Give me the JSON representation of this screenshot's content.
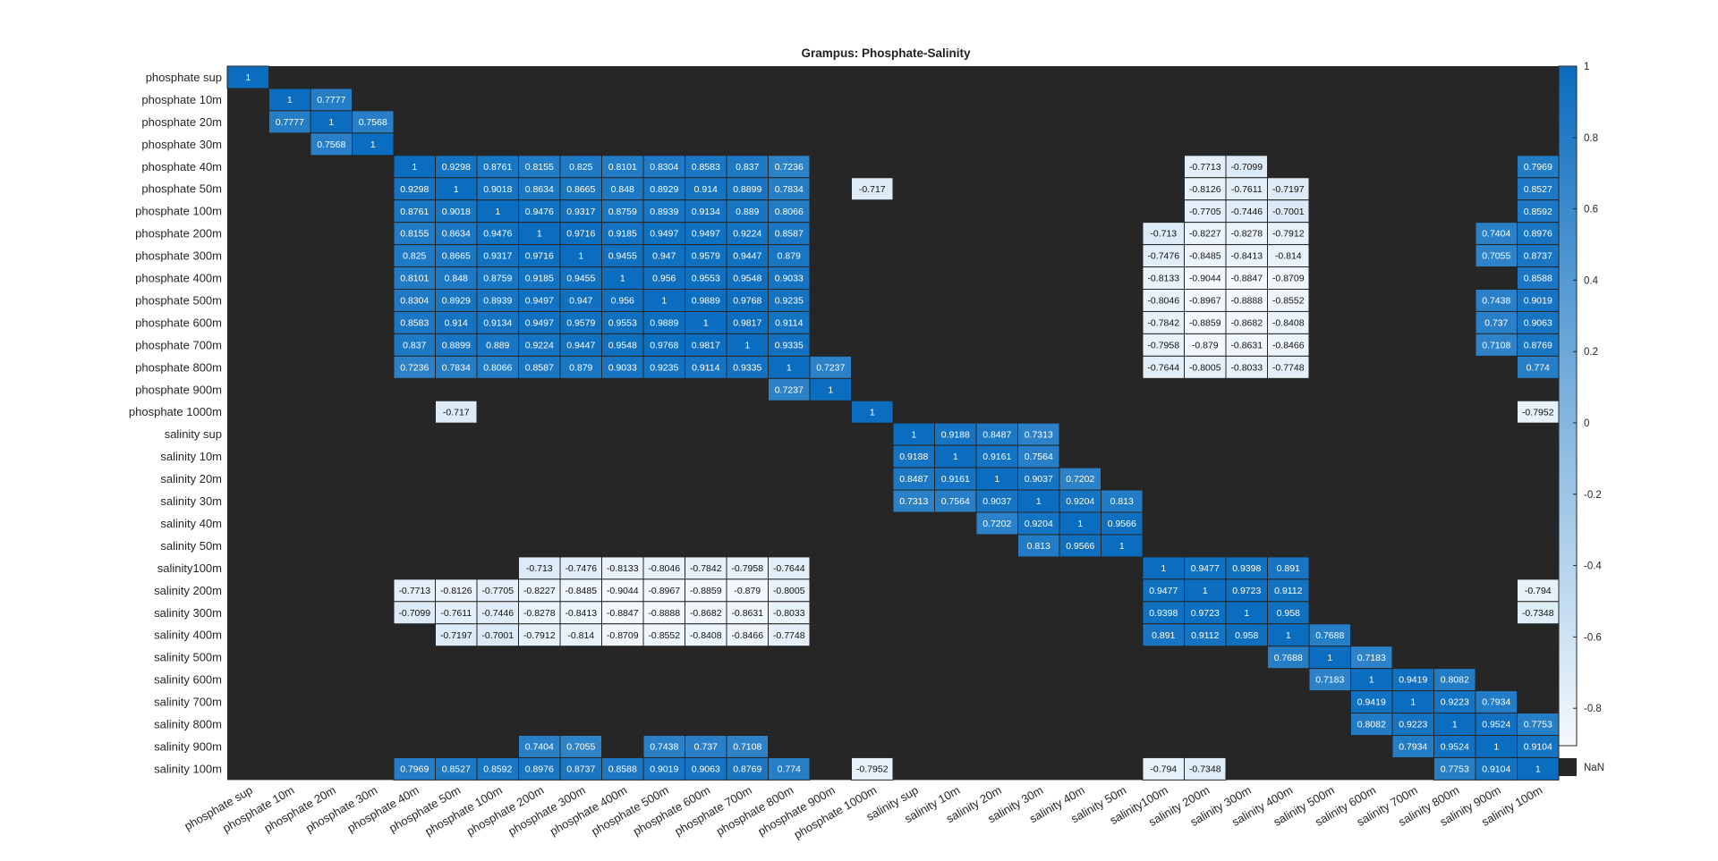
{
  "chart_data": {
    "type": "heatmap",
    "title": "Grampus: Phosphate-Salinity",
    "labels": [
      "phosphate sup",
      "phosphate 10m",
      "phosphate 20m",
      "phosphate 30m",
      "phosphate 40m",
      "phosphate 50m",
      "phosphate 100m",
      "phosphate 200m",
      "phosphate 300m",
      "phosphate 400m",
      "phosphate 500m",
      "phosphate 600m",
      "phosphate 700m",
      "phosphate 800m",
      "phosphate 900m",
      "phosphate 1000m",
      "salinity sup",
      "salinity 10m",
      "salinity 20m",
      "salinity 30m",
      "salinity 40m",
      "salinity 50m",
      "salinity100m",
      "salinity 200m",
      "salinity 300m",
      "salinity 400m",
      "salinity 500m",
      "salinity 600m",
      "salinity 700m",
      "salinity 800m",
      "salinity 900m",
      "salinity 100m"
    ],
    "cells": [
      [
        0,
        0,
        "1"
      ],
      [
        1,
        1,
        "1"
      ],
      [
        1,
        2,
        "0.7777"
      ],
      [
        2,
        1,
        "0.7777"
      ],
      [
        2,
        2,
        "1"
      ],
      [
        2,
        3,
        "0.7568"
      ],
      [
        3,
        2,
        "0.7568"
      ],
      [
        3,
        3,
        "1"
      ],
      [
        4,
        4,
        "1"
      ],
      [
        4,
        5,
        "0.9298"
      ],
      [
        4,
        6,
        "0.8761"
      ],
      [
        4,
        7,
        "0.8155"
      ],
      [
        4,
        8,
        "0.825"
      ],
      [
        4,
        9,
        "0.8101"
      ],
      [
        4,
        10,
        "0.8304"
      ],
      [
        4,
        11,
        "0.8583"
      ],
      [
        4,
        12,
        "0.837"
      ],
      [
        4,
        13,
        "0.7236"
      ],
      [
        4,
        23,
        "-0.7713"
      ],
      [
        4,
        24,
        "-0.7099"
      ],
      [
        4,
        31,
        "0.7969"
      ],
      [
        5,
        4,
        "0.9298"
      ],
      [
        5,
        5,
        "1"
      ],
      [
        5,
        6,
        "0.9018"
      ],
      [
        5,
        7,
        "0.8634"
      ],
      [
        5,
        8,
        "0.8665"
      ],
      [
        5,
        9,
        "0.848"
      ],
      [
        5,
        10,
        "0.8929"
      ],
      [
        5,
        11,
        "0.914"
      ],
      [
        5,
        12,
        "0.8899"
      ],
      [
        5,
        13,
        "0.7834"
      ],
      [
        5,
        15,
        "-0.717"
      ],
      [
        5,
        23,
        "-0.8126"
      ],
      [
        5,
        24,
        "-0.7611"
      ],
      [
        5,
        25,
        "-0.7197"
      ],
      [
        5,
        31,
        "0.8527"
      ],
      [
        6,
        4,
        "0.8761"
      ],
      [
        6,
        5,
        "0.9018"
      ],
      [
        6,
        6,
        "1"
      ],
      [
        6,
        7,
        "0.9476"
      ],
      [
        6,
        8,
        "0.9317"
      ],
      [
        6,
        9,
        "0.8759"
      ],
      [
        6,
        10,
        "0.8939"
      ],
      [
        6,
        11,
        "0.9134"
      ],
      [
        6,
        12,
        "0.889"
      ],
      [
        6,
        13,
        "0.8066"
      ],
      [
        6,
        23,
        "-0.7705"
      ],
      [
        6,
        24,
        "-0.7446"
      ],
      [
        6,
        25,
        "-0.7001"
      ],
      [
        6,
        31,
        "0.8592"
      ],
      [
        7,
        4,
        "0.8155"
      ],
      [
        7,
        5,
        "0.8634"
      ],
      [
        7,
        6,
        "0.9476"
      ],
      [
        7,
        7,
        "1"
      ],
      [
        7,
        8,
        "0.9716"
      ],
      [
        7,
        9,
        "0.9185"
      ],
      [
        7,
        10,
        "0.9497"
      ],
      [
        7,
        11,
        "0.9497"
      ],
      [
        7,
        12,
        "0.9224"
      ],
      [
        7,
        13,
        "0.8587"
      ],
      [
        7,
        22,
        "-0.713"
      ],
      [
        7,
        23,
        "-0.8227"
      ],
      [
        7,
        24,
        "-0.8278"
      ],
      [
        7,
        25,
        "-0.7912"
      ],
      [
        7,
        30,
        "0.7404"
      ],
      [
        7,
        31,
        "0.8976"
      ],
      [
        8,
        4,
        "0.825"
      ],
      [
        8,
        5,
        "0.8665"
      ],
      [
        8,
        6,
        "0.9317"
      ],
      [
        8,
        7,
        "0.9716"
      ],
      [
        8,
        8,
        "1"
      ],
      [
        8,
        9,
        "0.9455"
      ],
      [
        8,
        10,
        "0.947"
      ],
      [
        8,
        11,
        "0.9579"
      ],
      [
        8,
        12,
        "0.9447"
      ],
      [
        8,
        13,
        "0.879"
      ],
      [
        8,
        22,
        "-0.7476"
      ],
      [
        8,
        23,
        "-0.8485"
      ],
      [
        8,
        24,
        "-0.8413"
      ],
      [
        8,
        25,
        "-0.814"
      ],
      [
        8,
        30,
        "0.7055"
      ],
      [
        8,
        31,
        "0.8737"
      ],
      [
        9,
        4,
        "0.8101"
      ],
      [
        9,
        5,
        "0.848"
      ],
      [
        9,
        6,
        "0.8759"
      ],
      [
        9,
        7,
        "0.9185"
      ],
      [
        9,
        8,
        "0.9455"
      ],
      [
        9,
        9,
        "1"
      ],
      [
        9,
        10,
        "0.956"
      ],
      [
        9,
        11,
        "0.9553"
      ],
      [
        9,
        12,
        "0.9548"
      ],
      [
        9,
        13,
        "0.9033"
      ],
      [
        9,
        22,
        "-0.8133"
      ],
      [
        9,
        23,
        "-0.9044"
      ],
      [
        9,
        24,
        "-0.8847"
      ],
      [
        9,
        25,
        "-0.8709"
      ],
      [
        9,
        31,
        "0.8588"
      ],
      [
        10,
        4,
        "0.8304"
      ],
      [
        10,
        5,
        "0.8929"
      ],
      [
        10,
        6,
        "0.8939"
      ],
      [
        10,
        7,
        "0.9497"
      ],
      [
        10,
        8,
        "0.947"
      ],
      [
        10,
        9,
        "0.956"
      ],
      [
        10,
        10,
        "1"
      ],
      [
        10,
        11,
        "0.9889"
      ],
      [
        10,
        12,
        "0.9768"
      ],
      [
        10,
        13,
        "0.9235"
      ],
      [
        10,
        22,
        "-0.8046"
      ],
      [
        10,
        23,
        "-0.8967"
      ],
      [
        10,
        24,
        "-0.8888"
      ],
      [
        10,
        25,
        "-0.8552"
      ],
      [
        10,
        30,
        "0.7438"
      ],
      [
        10,
        31,
        "0.9019"
      ],
      [
        11,
        4,
        "0.8583"
      ],
      [
        11,
        5,
        "0.914"
      ],
      [
        11,
        6,
        "0.9134"
      ],
      [
        11,
        7,
        "0.9497"
      ],
      [
        11,
        8,
        "0.9579"
      ],
      [
        11,
        9,
        "0.9553"
      ],
      [
        11,
        10,
        "0.9889"
      ],
      [
        11,
        11,
        "1"
      ],
      [
        11,
        12,
        "0.9817"
      ],
      [
        11,
        13,
        "0.9114"
      ],
      [
        11,
        22,
        "-0.7842"
      ],
      [
        11,
        23,
        "-0.8859"
      ],
      [
        11,
        24,
        "-0.8682"
      ],
      [
        11,
        25,
        "-0.8408"
      ],
      [
        11,
        30,
        "0.737"
      ],
      [
        11,
        31,
        "0.9063"
      ],
      [
        12,
        4,
        "0.837"
      ],
      [
        12,
        5,
        "0.8899"
      ],
      [
        12,
        6,
        "0.889"
      ],
      [
        12,
        7,
        "0.9224"
      ],
      [
        12,
        8,
        "0.9447"
      ],
      [
        12,
        9,
        "0.9548"
      ],
      [
        12,
        10,
        "0.9768"
      ],
      [
        12,
        11,
        "0.9817"
      ],
      [
        12,
        12,
        "1"
      ],
      [
        12,
        13,
        "0.9335"
      ],
      [
        12,
        22,
        "-0.7958"
      ],
      [
        12,
        23,
        "-0.879"
      ],
      [
        12,
        24,
        "-0.8631"
      ],
      [
        12,
        25,
        "-0.8466"
      ],
      [
        12,
        30,
        "0.7108"
      ],
      [
        12,
        31,
        "0.8769"
      ],
      [
        13,
        4,
        "0.7236"
      ],
      [
        13,
        5,
        "0.7834"
      ],
      [
        13,
        6,
        "0.8066"
      ],
      [
        13,
        7,
        "0.8587"
      ],
      [
        13,
        8,
        "0.879"
      ],
      [
        13,
        9,
        "0.9033"
      ],
      [
        13,
        10,
        "0.9235"
      ],
      [
        13,
        11,
        "0.9114"
      ],
      [
        13,
        12,
        "0.9335"
      ],
      [
        13,
        13,
        "1"
      ],
      [
        13,
        14,
        "0.7237"
      ],
      [
        13,
        22,
        "-0.7644"
      ],
      [
        13,
        23,
        "-0.8005"
      ],
      [
        13,
        24,
        "-0.8033"
      ],
      [
        13,
        25,
        "-0.7748"
      ],
      [
        13,
        31,
        "0.774"
      ],
      [
        14,
        13,
        "0.7237"
      ],
      [
        14,
        14,
        "1"
      ],
      [
        15,
        5,
        "-0.717"
      ],
      [
        15,
        15,
        "1"
      ],
      [
        15,
        31,
        "-0.7952"
      ],
      [
        16,
        16,
        "1"
      ],
      [
        16,
        17,
        "0.9188"
      ],
      [
        16,
        18,
        "0.8487"
      ],
      [
        16,
        19,
        "0.7313"
      ],
      [
        17,
        16,
        "0.9188"
      ],
      [
        17,
        17,
        "1"
      ],
      [
        17,
        18,
        "0.9161"
      ],
      [
        17,
        19,
        "0.7564"
      ],
      [
        18,
        16,
        "0.8487"
      ],
      [
        18,
        17,
        "0.9161"
      ],
      [
        18,
        18,
        "1"
      ],
      [
        18,
        19,
        "0.9037"
      ],
      [
        18,
        20,
        "0.7202"
      ],
      [
        19,
        16,
        "0.7313"
      ],
      [
        19,
        17,
        "0.7564"
      ],
      [
        19,
        18,
        "0.9037"
      ],
      [
        19,
        19,
        "1"
      ],
      [
        19,
        20,
        "0.9204"
      ],
      [
        19,
        21,
        "0.813"
      ],
      [
        20,
        18,
        "0.7202"
      ],
      [
        20,
        19,
        "0.9204"
      ],
      [
        20,
        20,
        "1"
      ],
      [
        20,
        21,
        "0.9566"
      ],
      [
        21,
        19,
        "0.813"
      ],
      [
        21,
        20,
        "0.9566"
      ],
      [
        21,
        21,
        "1"
      ],
      [
        22,
        7,
        "-0.713"
      ],
      [
        22,
        8,
        "-0.7476"
      ],
      [
        22,
        9,
        "-0.8133"
      ],
      [
        22,
        10,
        "-0.8046"
      ],
      [
        22,
        11,
        "-0.7842"
      ],
      [
        22,
        12,
        "-0.7958"
      ],
      [
        22,
        13,
        "-0.7644"
      ],
      [
        22,
        22,
        "1"
      ],
      [
        22,
        23,
        "0.9477"
      ],
      [
        22,
        24,
        "0.9398"
      ],
      [
        22,
        25,
        "0.891"
      ],
      [
        23,
        4,
        "-0.7713"
      ],
      [
        23,
        5,
        "-0.8126"
      ],
      [
        23,
        6,
        "-0.7705"
      ],
      [
        23,
        7,
        "-0.8227"
      ],
      [
        23,
        8,
        "-0.8485"
      ],
      [
        23,
        9,
        "-0.9044"
      ],
      [
        23,
        10,
        "-0.8967"
      ],
      [
        23,
        11,
        "-0.8859"
      ],
      [
        23,
        12,
        "-0.879"
      ],
      [
        23,
        13,
        "-0.8005"
      ],
      [
        23,
        22,
        "0.9477"
      ],
      [
        23,
        23,
        "1"
      ],
      [
        23,
        24,
        "0.9723"
      ],
      [
        23,
        25,
        "0.9112"
      ],
      [
        23,
        31,
        "-0.794"
      ],
      [
        24,
        4,
        "-0.7099"
      ],
      [
        24,
        5,
        "-0.7611"
      ],
      [
        24,
        6,
        "-0.7446"
      ],
      [
        24,
        7,
        "-0.8278"
      ],
      [
        24,
        8,
        "-0.8413"
      ],
      [
        24,
        9,
        "-0.8847"
      ],
      [
        24,
        10,
        "-0.8888"
      ],
      [
        24,
        11,
        "-0.8682"
      ],
      [
        24,
        12,
        "-0.8631"
      ],
      [
        24,
        13,
        "-0.8033"
      ],
      [
        24,
        22,
        "0.9398"
      ],
      [
        24,
        23,
        "0.9723"
      ],
      [
        24,
        24,
        "1"
      ],
      [
        24,
        25,
        "0.958"
      ],
      [
        24,
        31,
        "-0.7348"
      ],
      [
        25,
        5,
        "-0.7197"
      ],
      [
        25,
        6,
        "-0.7001"
      ],
      [
        25,
        7,
        "-0.7912"
      ],
      [
        25,
        8,
        "-0.814"
      ],
      [
        25,
        9,
        "-0.8709"
      ],
      [
        25,
        10,
        "-0.8552"
      ],
      [
        25,
        11,
        "-0.8408"
      ],
      [
        25,
        12,
        "-0.8466"
      ],
      [
        25,
        13,
        "-0.7748"
      ],
      [
        25,
        22,
        "0.891"
      ],
      [
        25,
        23,
        "0.9112"
      ],
      [
        25,
        24,
        "0.958"
      ],
      [
        25,
        25,
        "1"
      ],
      [
        25,
        26,
        "0.7688"
      ],
      [
        26,
        25,
        "0.7688"
      ],
      [
        26,
        26,
        "1"
      ],
      [
        26,
        27,
        "0.7183"
      ],
      [
        27,
        26,
        "0.7183"
      ],
      [
        27,
        27,
        "1"
      ],
      [
        27,
        28,
        "0.9419"
      ],
      [
        27,
        29,
        "0.8082"
      ],
      [
        28,
        27,
        "0.9419"
      ],
      [
        28,
        28,
        "1"
      ],
      [
        28,
        29,
        "0.9223"
      ],
      [
        28,
        30,
        "0.7934"
      ],
      [
        29,
        27,
        "0.8082"
      ],
      [
        29,
        28,
        "0.9223"
      ],
      [
        29,
        29,
        "1"
      ],
      [
        29,
        30,
        "0.9524"
      ],
      [
        29,
        31,
        "0.7753"
      ],
      [
        30,
        7,
        "0.7404"
      ],
      [
        30,
        8,
        "0.7055"
      ],
      [
        30,
        10,
        "0.7438"
      ],
      [
        30,
        11,
        "0.737"
      ],
      [
        30,
        12,
        "0.7108"
      ],
      [
        30,
        28,
        "0.7934"
      ],
      [
        30,
        29,
        "0.9524"
      ],
      [
        30,
        30,
        "1"
      ],
      [
        30,
        31,
        "0.9104"
      ],
      [
        31,
        4,
        "0.7969"
      ],
      [
        31,
        5,
        "0.8527"
      ],
      [
        31,
        6,
        "0.8592"
      ],
      [
        31,
        7,
        "0.8976"
      ],
      [
        31,
        8,
        "0.8737"
      ],
      [
        31,
        9,
        "0.8588"
      ],
      [
        31,
        10,
        "0.9019"
      ],
      [
        31,
        11,
        "0.9063"
      ],
      [
        31,
        12,
        "0.8769"
      ],
      [
        31,
        13,
        "0.774"
      ],
      [
        31,
        15,
        "-0.7952"
      ],
      [
        31,
        22,
        "-0.794"
      ],
      [
        31,
        23,
        "-0.7348"
      ],
      [
        31,
        29,
        "0.7753"
      ],
      [
        31,
        30,
        "0.9104"
      ],
      [
        31,
        31,
        "1"
      ]
    ],
    "colorbar": {
      "ticks": [
        1,
        0.8,
        0.6,
        0.4,
        0.2,
        0,
        -0.2,
        -0.4,
        -0.6,
        -0.8
      ],
      "tick_labels": [
        "1",
        "0.8",
        "0.6",
        "0.4",
        "0.2",
        "0",
        "-0.2",
        "-0.4",
        "-0.6",
        "-0.8"
      ],
      "range": [
        -0.9048,
        1
      ],
      "nan_label": "NaN"
    },
    "colors": {
      "high": "#0a6dbf",
      "low": "#f4f9fd",
      "nan": "#262626",
      "grid": "#262626"
    },
    "grid": true,
    "legend": "right"
  }
}
